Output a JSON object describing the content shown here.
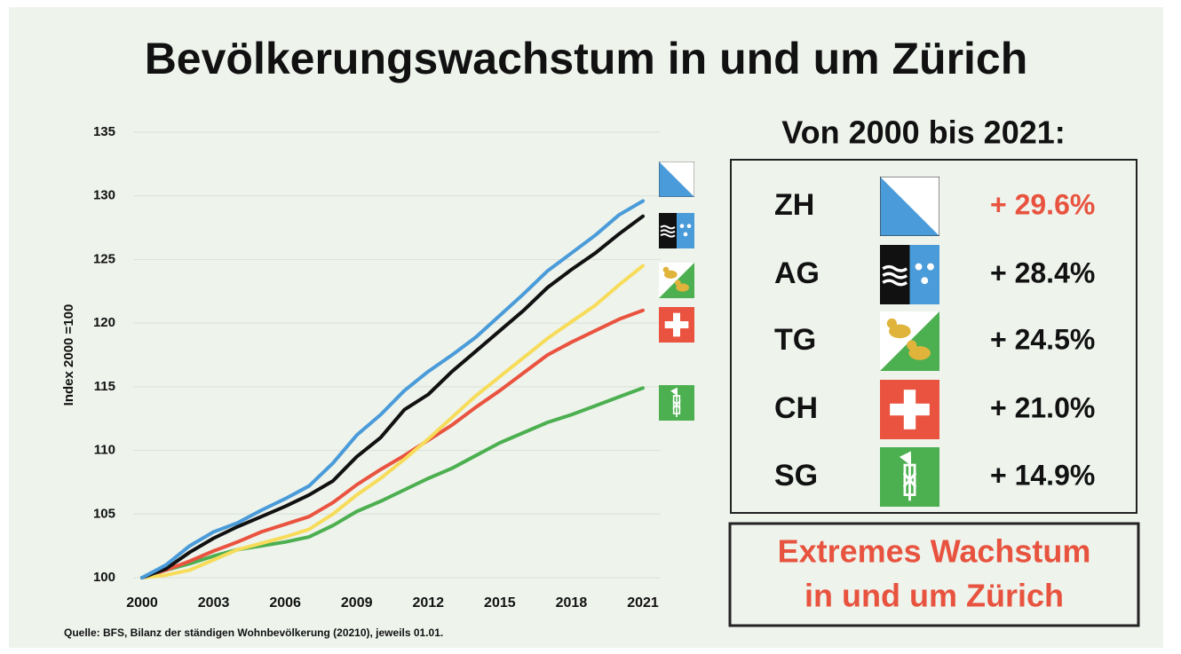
{
  "title": "Bevölkerungswachstum in und um Zürich",
  "source": "Quelle: BFS, Bilanz der ständigen Wohnbevölkerung (20210), jeweils 01.01.",
  "chart_data": {
    "type": "line",
    "ylabel": "Index 2000 =100",
    "x": [
      2000,
      2001,
      2002,
      2003,
      2004,
      2005,
      2006,
      2007,
      2008,
      2009,
      2010,
      2011,
      2012,
      2013,
      2014,
      2015,
      2016,
      2017,
      2018,
      2019,
      2020,
      2021
    ],
    "xlim": [
      2000,
      2021
    ],
    "xticks": [
      2000,
      2003,
      2006,
      2009,
      2012,
      2015,
      2018,
      2021
    ],
    "ylim": [
      100,
      135
    ],
    "yticks": [
      100,
      105,
      110,
      115,
      120,
      125,
      130,
      135
    ],
    "grid": true,
    "highlight": "ZH",
    "highlight_color": "#e8533f",
    "series": [
      {
        "name": "ZH",
        "color": "#4a9bd9",
        "growth_label": "+ 29.6%",
        "values": [
          100,
          101,
          102.5,
          103.6,
          104.3,
          105.3,
          106.2,
          107.2,
          109,
          111.2,
          112.8,
          114.7,
          116.2,
          117.5,
          118.9,
          120.6,
          122.3,
          124.1,
          125.5,
          126.9,
          128.5,
          129.6
        ]
      },
      {
        "name": "AG",
        "color": "#111111",
        "growth_label": "+ 28.4%",
        "values": [
          100,
          100.7,
          102,
          103.1,
          104,
          104.8,
          105.6,
          106.5,
          107.6,
          109.5,
          111,
          113.2,
          114.4,
          116.2,
          117.8,
          119.4,
          121,
          122.8,
          124.2,
          125.5,
          127,
          128.4
        ]
      },
      {
        "name": "TG",
        "color": "#f7dc5a",
        "growth_label": "+ 24.5%",
        "values": [
          100,
          100.2,
          100.6,
          101.4,
          102.2,
          102.7,
          103.2,
          103.8,
          105,
          106.5,
          107.8,
          109.3,
          110.9,
          112.6,
          114.3,
          115.8,
          117.3,
          118.8,
          120.1,
          121.4,
          123,
          124.5
        ]
      },
      {
        "name": "CH",
        "color": "#e9533f",
        "growth_label": "+ 21.0%",
        "values": [
          100,
          100.6,
          101.3,
          102.1,
          102.8,
          103.6,
          104.2,
          104.8,
          105.9,
          107.3,
          108.5,
          109.6,
          110.8,
          112,
          113.4,
          114.7,
          116.1,
          117.5,
          118.5,
          119.4,
          120.3,
          121
        ]
      },
      {
        "name": "SG",
        "color": "#4caf50",
        "growth_label": "+ 14.9%",
        "values": [
          100,
          100.6,
          101.1,
          101.7,
          102.2,
          102.5,
          102.8,
          103.2,
          104.1,
          105.2,
          106,
          106.9,
          107.8,
          108.6,
          109.6,
          110.6,
          111.4,
          112.2,
          112.8,
          113.5,
          114.2,
          114.9
        ]
      }
    ]
  },
  "panel": {
    "title": "Von 2000 bis 2021:",
    "footer": [
      "Extremes Wachstum",
      "in und um Zürich"
    ]
  }
}
